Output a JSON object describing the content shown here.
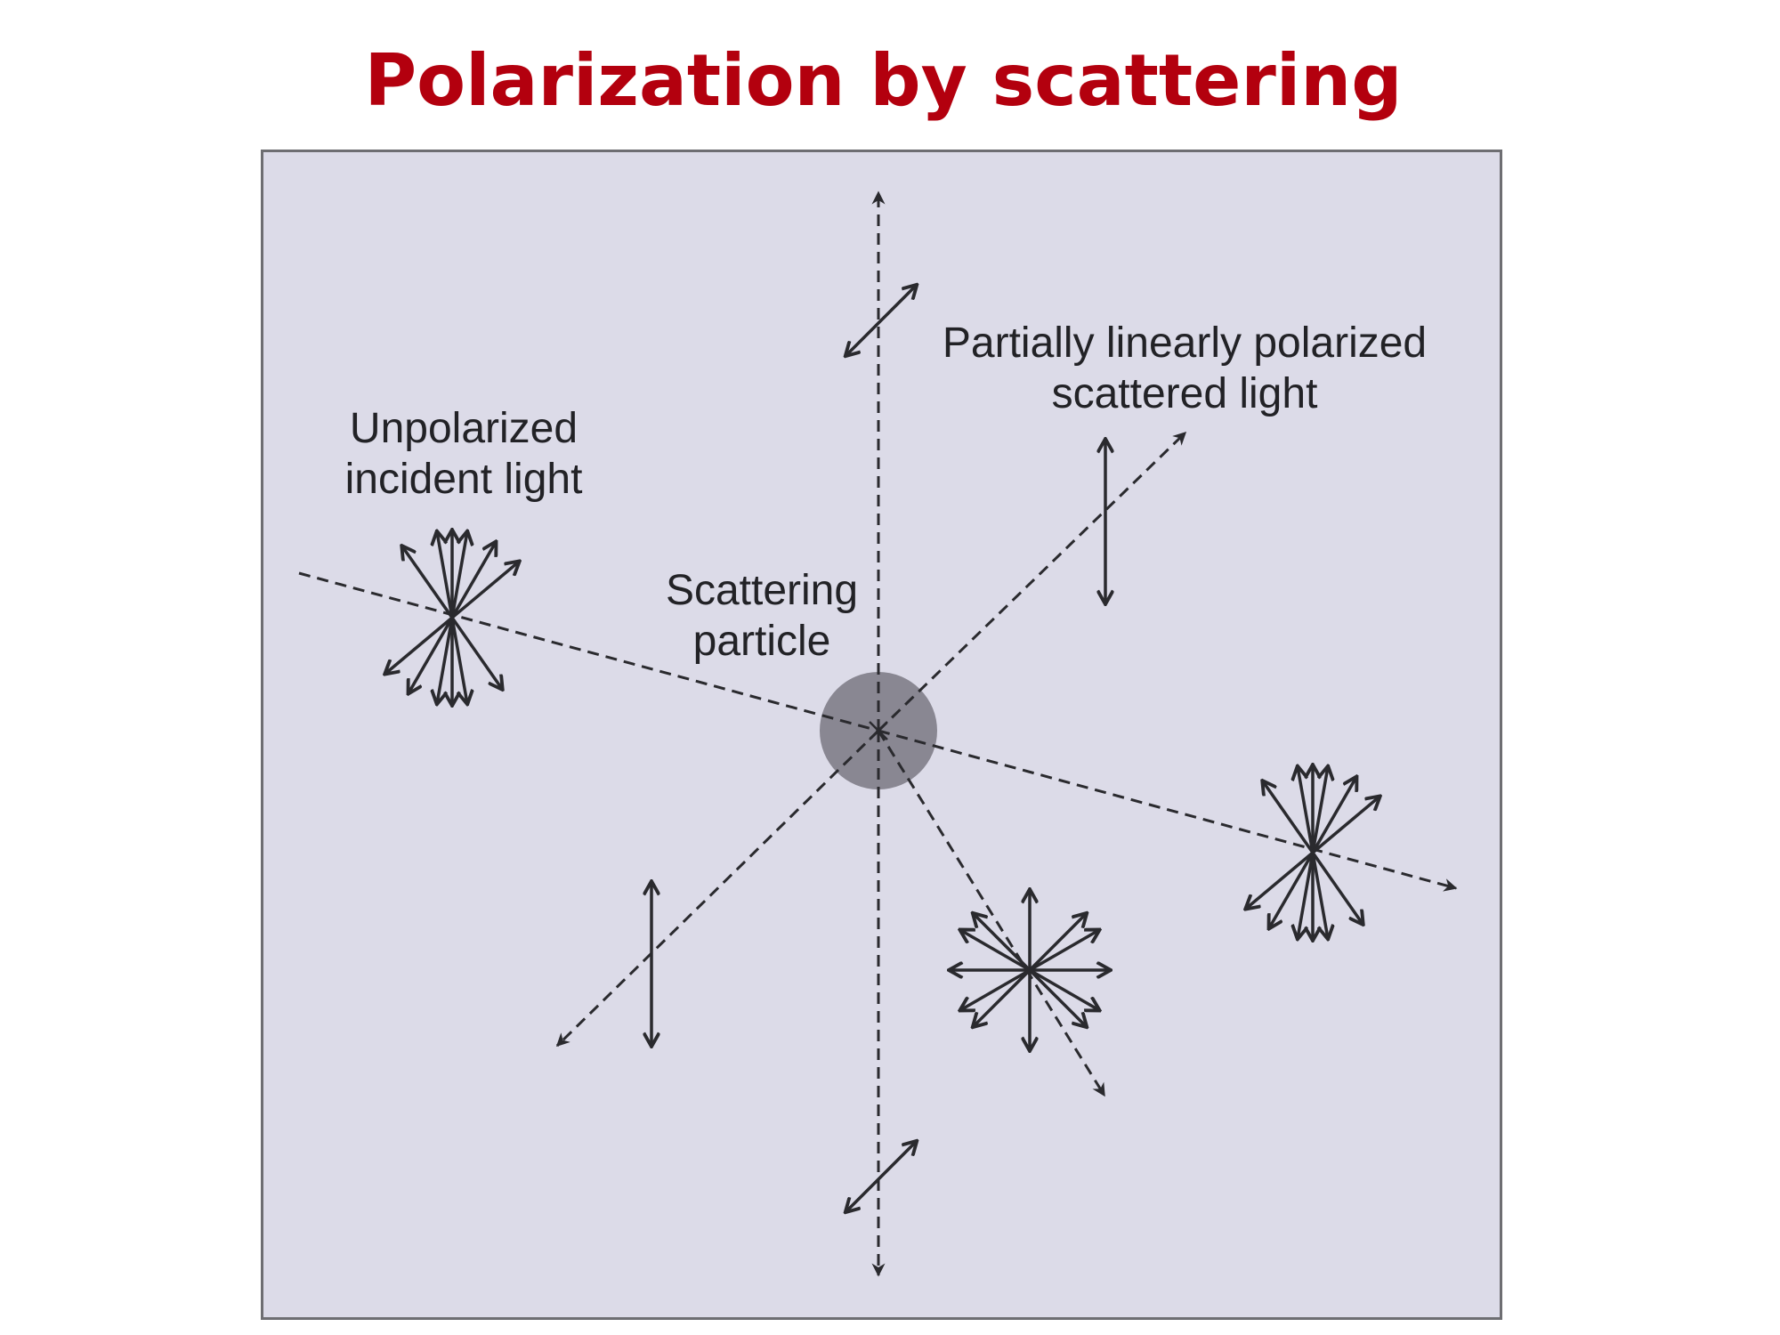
{
  "title": {
    "text": "Polarization by scattering",
    "color": "#b3000e"
  },
  "diagram": {
    "labels": {
      "unpolarized": [
        "Unpolarized",
        "incident light"
      ],
      "particle": [
        "Scattering",
        "particle"
      ],
      "partial": [
        "Partially linearly polarized",
        "scattered light"
      ]
    },
    "colors": {
      "panel": "#dcdbe8",
      "line": "#2a2a2e",
      "particle": "#7a7882"
    }
  }
}
